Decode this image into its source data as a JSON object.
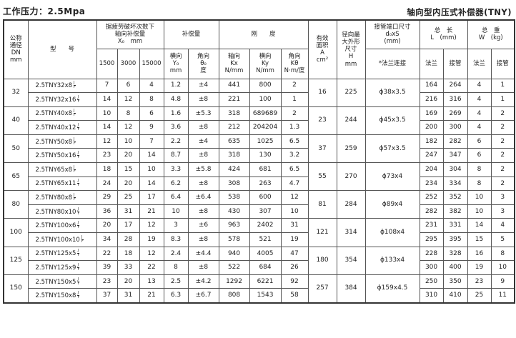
{
  "title_left": "工作压力：2.5Mpa",
  "title_right": "轴向型内压式补偿器(TNY)",
  "headers": {
    "dn": "公称\n通径\nDN\nmm",
    "model": "型　　号",
    "x0": "据疲劳破坏次数下\n轴向补偿量\nX₀　mm",
    "x0_sub": [
      "1500",
      "3000",
      "15000"
    ],
    "comp": "补偿量",
    "y0": "横向\nY₀\nmm",
    "theta0": "角向\nθ₀\n度",
    "stiff": "刚　　度",
    "kx": "轴向\nKx\nN/mm",
    "ky": "横向\nKy\nN/mm",
    "ktheta": "角向\nKθ\nN·m/度",
    "area": "有效\n面积\nA\ncm²",
    "h": "径向最\n大外形\n尺寸\nH\nmm",
    "pipe": "接管端口尺寸\nd₀xS\n(mm)",
    "pipe_sub": "*法兰连接",
    "len": "总　长\nL　(mm)",
    "wt": "总　重\nW　(kg)",
    "flange": "法兰",
    "weld": "接管"
  },
  "frac": {
    "top": "J",
    "bottom": "F"
  },
  "groups": [
    {
      "dn": "32",
      "area": "16",
      "h": "225",
      "pipe": "ϕ38x3.5",
      "rows": [
        {
          "model": "2.5TNY32x8",
          "x": [
            "7",
            "6",
            "4"
          ],
          "y0": "1.2",
          "th": "±4",
          "kx": "441",
          "ky": "800",
          "kt": "2",
          "lf": "164",
          "lw": "264",
          "wf": "4",
          "ww": "1"
        },
        {
          "model": "2.5TNY32x16",
          "x": [
            "14",
            "12",
            "8"
          ],
          "y0": "4.8",
          "th": "±8",
          "kx": "221",
          "ky": "100",
          "kt": "1",
          "lf": "216",
          "lw": "316",
          "wf": "4",
          "ww": "1"
        }
      ]
    },
    {
      "dn": "40",
      "area": "23",
      "h": "244",
      "pipe": "ϕ45x3.5",
      "rows": [
        {
          "model": "2.5TNY40x8",
          "x": [
            "10",
            "8",
            "6"
          ],
          "y0": "1.6",
          "th": "±5.3",
          "kx": "318",
          "ky": "689689",
          "kt": "2",
          "lf": "169",
          "lw": "269",
          "wf": "4",
          "ww": "2"
        },
        {
          "model": "2.5TNY40x12",
          "x": [
            "14",
            "12",
            "9"
          ],
          "y0": "3.6",
          "th": "±8",
          "kx": "212",
          "ky": "204204",
          "kt": "1.3",
          "lf": "200",
          "lw": "300",
          "wf": "4",
          "ww": "2"
        }
      ]
    },
    {
      "dn": "50",
      "area": "37",
      "h": "259",
      "pipe": "ϕ57x3.5",
      "rows": [
        {
          "model": "2.5TNY50x8",
          "x": [
            "12",
            "10",
            "7"
          ],
          "y0": "2.2",
          "th": "±4",
          "kx": "635",
          "ky": "1025",
          "kt": "6.5",
          "lf": "182",
          "lw": "282",
          "wf": "6",
          "ww": "2"
        },
        {
          "model": "2.5TNY50x16",
          "x": [
            "23",
            "20",
            "14"
          ],
          "y0": "8.7",
          "th": "±8",
          "kx": "318",
          "ky": "130",
          "kt": "3.2",
          "lf": "247",
          "lw": "347",
          "wf": "6",
          "ww": "2"
        }
      ]
    },
    {
      "dn": "65",
      "area": "55",
      "h": "270",
      "pipe": "ϕ73x4",
      "rows": [
        {
          "model": "2.5TNY65x8",
          "x": [
            "18",
            "15",
            "10"
          ],
          "y0": "3.3",
          "th": "±5.8",
          "kx": "424",
          "ky": "681",
          "kt": "6.5",
          "lf": "204",
          "lw": "304",
          "wf": "8",
          "ww": "2"
        },
        {
          "model": "2.5TNY65x11",
          "x": [
            "24",
            "20",
            "14"
          ],
          "y0": "6.2",
          "th": "±8",
          "kx": "308",
          "ky": "263",
          "kt": "4.7",
          "lf": "234",
          "lw": "334",
          "wf": "8",
          "ww": "2"
        }
      ]
    },
    {
      "dn": "80",
      "area": "81",
      "h": "284",
      "pipe": "ϕ89x4",
      "rows": [
        {
          "model": "2.5TNY80x8",
          "x": [
            "29",
            "25",
            "17"
          ],
          "y0": "6.4",
          "th": "±6.4",
          "kx": "538",
          "ky": "600",
          "kt": "12",
          "lf": "252",
          "lw": "352",
          "wf": "10",
          "ww": "3"
        },
        {
          "model": "2.5TNY80x10",
          "x": [
            "36",
            "31",
            "21"
          ],
          "y0": "10",
          "th": "±8",
          "kx": "430",
          "ky": "307",
          "kt": "10",
          "lf": "282",
          "lw": "382",
          "wf": "10",
          "ww": "3"
        }
      ]
    },
    {
      "dn": "100",
      "area": "121",
      "h": "314",
      "pipe": "ϕ108x4",
      "rows": [
        {
          "model": "2.5TNY100x6",
          "x": [
            "20",
            "17",
            "12"
          ],
          "y0": "3",
          "th": "±6",
          "kx": "963",
          "ky": "2402",
          "kt": "31",
          "lf": "231",
          "lw": "331",
          "wf": "14",
          "ww": "4"
        },
        {
          "model": "2.5TNY100x10",
          "x": [
            "34",
            "28",
            "19"
          ],
          "y0": "8.3",
          "th": "±8",
          "kx": "578",
          "ky": "521",
          "kt": "19",
          "lf": "295",
          "lw": "395",
          "wf": "15",
          "ww": "5"
        }
      ]
    },
    {
      "dn": "125",
      "area": "180",
      "h": "354",
      "pipe": "ϕ133x4",
      "rows": [
        {
          "model": "2.5TNY125x5",
          "x": [
            "22",
            "18",
            "12"
          ],
          "y0": "2.4",
          "th": "±4.4",
          "kx": "940",
          "ky": "4005",
          "kt": "47",
          "lf": "228",
          "lw": "328",
          "wf": "16",
          "ww": "8"
        },
        {
          "model": "2.5TNY125x9",
          "x": [
            "39",
            "33",
            "22"
          ],
          "y0": "8",
          "th": "±8",
          "kx": "522",
          "ky": "684",
          "kt": "26",
          "lf": "300",
          "lw": "400",
          "wf": "19",
          "ww": "10"
        }
      ]
    },
    {
      "dn": "150",
      "area": "257",
      "h": "384",
      "pipe": "ϕ159x4.5",
      "rows": [
        {
          "model": "2.5TNY150x5",
          "x": [
            "23",
            "20",
            "13"
          ],
          "y0": "2.5",
          "th": "±4.2",
          "kx": "1292",
          "ky": "6221",
          "kt": "92",
          "lf": "250",
          "lw": "350",
          "wf": "23",
          "ww": "9"
        },
        {
          "model": "2.5TNY150x8",
          "x": [
            "37",
            "31",
            "21"
          ],
          "y0": "6.3",
          "th": "±6.7",
          "kx": "808",
          "ky": "1543",
          "kt": "58",
          "lf": "310",
          "lw": "410",
          "wf": "25",
          "ww": "11"
        }
      ]
    }
  ]
}
